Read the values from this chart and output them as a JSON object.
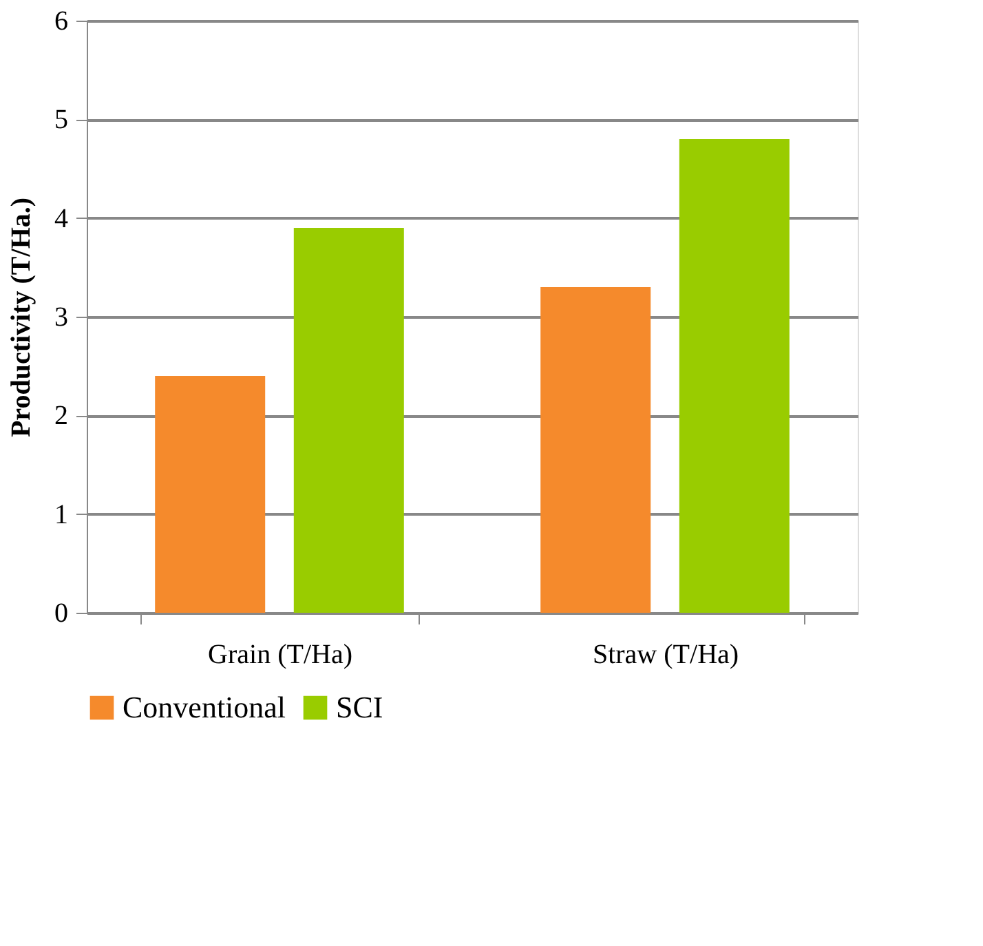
{
  "chart_data": {
    "type": "bar",
    "ylabel": "Productivity (T/Ha.)",
    "categories": [
      "Grain (T/Ha)",
      "Straw (T/Ha)"
    ],
    "series": [
      {
        "name": "Conventional",
        "color": "#f58a2c",
        "values": [
          2.4,
          3.3
        ]
      },
      {
        "name": "SCI",
        "color": "#99cc00",
        "values": [
          3.9,
          4.8
        ]
      }
    ],
    "ylim": [
      0,
      6
    ],
    "yticks": [
      0,
      1,
      2,
      3,
      4,
      5,
      6
    ],
    "grid": "y",
    "legend": "bottom"
  }
}
